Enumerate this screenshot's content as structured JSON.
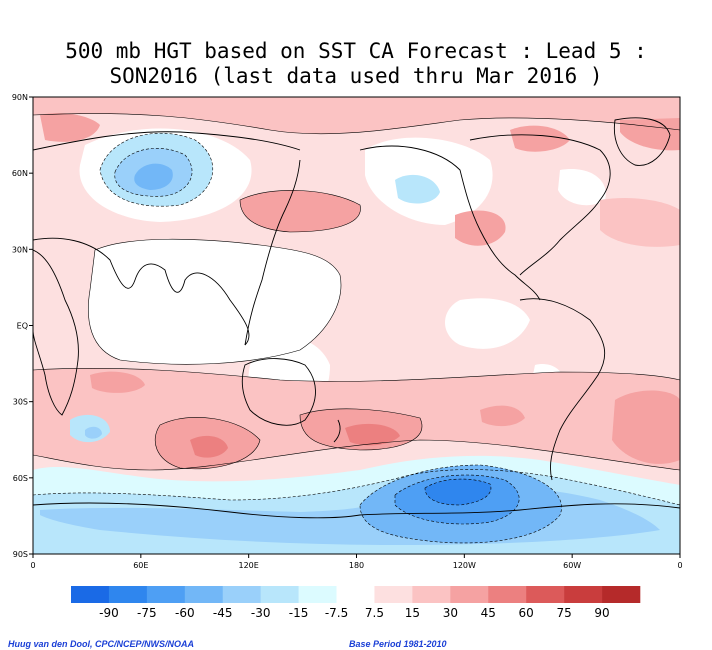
{
  "title": {
    "line1": "500 mb HGT based on SST CA Forecast : Lead 5 :",
    "line2": "SON2016 (last data used thru Mar 2016 )"
  },
  "map": {
    "lat_labels": [
      "90N",
      "60N",
      "30N",
      "EQ",
      "30S",
      "60S",
      "90S"
    ],
    "lon_labels": [
      "0",
      "60E",
      "120E",
      "180",
      "120W",
      "60W",
      "0"
    ]
  },
  "legend": {
    "labels": [
      "-90",
      "-75",
      "-60",
      "-45",
      "-30",
      "-15",
      "-7.5",
      "7.5",
      "15",
      "30",
      "45",
      "60",
      "75",
      "90"
    ],
    "colors": [
      "#1a6ae6",
      "#2f86ee",
      "#4e9ff4",
      "#72b7f7",
      "#9ad0fa",
      "#b8e6fb",
      "#dcfbff",
      "#ffffff",
      "#fde0e0",
      "#fbc3c3",
      "#f5a2a2",
      "#ec8080",
      "#dc5a5a",
      "#c93d3d",
      "#b52a2a"
    ]
  },
  "credits": {
    "left": "Huug van den Dool, CPC/NCEP/NWS/NOAA",
    "right": "Base Period 1981-2010"
  }
}
